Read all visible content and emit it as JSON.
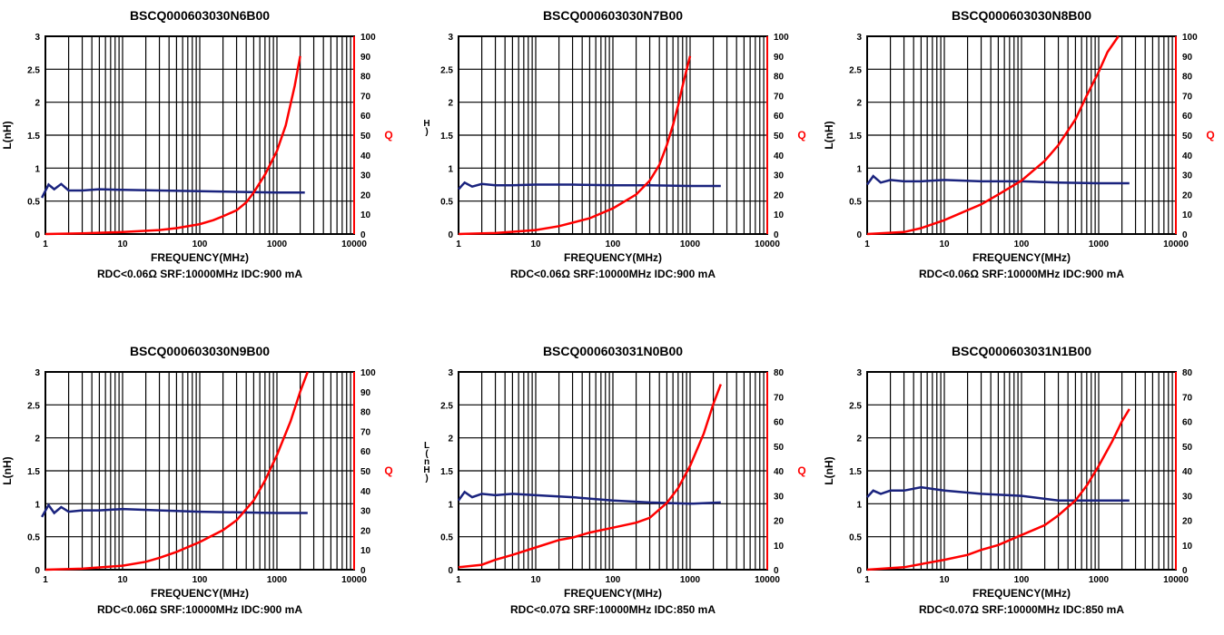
{
  "chart_data": [
    {
      "type": "line",
      "title": "BSCQ000603030N6B00",
      "xlabel": "FREQUENCY(MHz)",
      "ylabel": "L(nH)",
      "y2label": "Q",
      "footer": "RDC<0.06Ω SRF:10000MHz IDC:900 mA",
      "xscale": "log",
      "xlim": [
        1,
        10000
      ],
      "ylim": [
        0,
        3
      ],
      "y2lim": [
        0,
        100
      ],
      "x_ticks": [
        "1",
        "10",
        "100",
        "1000",
        "10000"
      ],
      "y_ticks": [
        "0",
        "0.5",
        "1",
        "1.5",
        "2",
        "2.5",
        "3"
      ],
      "y2_ticks": [
        "0",
        "10",
        "20",
        "30",
        "40",
        "50",
        "60",
        "70",
        "80",
        "90",
        "100"
      ],
      "series": [
        {
          "name": "L(nH)",
          "axis": "left",
          "color": "#1a237e",
          "x": [
            0.9,
            1.1,
            1.3,
            1.6,
            2,
            3,
            5,
            10,
            30,
            100,
            300,
            1000,
            2300
          ],
          "y": [
            0.55,
            0.75,
            0.68,
            0.76,
            0.66,
            0.66,
            0.68,
            0.67,
            0.66,
            0.65,
            0.64,
            0.63,
            0.63
          ]
        },
        {
          "name": "Q",
          "axis": "right",
          "color": "#ff0000",
          "x": [
            1,
            3,
            10,
            30,
            50,
            100,
            150,
            200,
            300,
            400,
            500,
            700,
            1000,
            1300,
            1700,
            2000
          ],
          "y": [
            0,
            0.3,
            1,
            2,
            3,
            5,
            7,
            9,
            12,
            16,
            21,
            30,
            42,
            55,
            75,
            90
          ]
        }
      ]
    },
    {
      "type": "line",
      "title": "BSCQ000603030N7B00",
      "xlabel": "FREQUENCY(MHz)",
      "ylabel": "H\n)",
      "y2label": "Q",
      "footer": "RDC<0.06Ω SRF:10000MHz IDC:900 mA",
      "xscale": "log",
      "xlim": [
        1,
        10000
      ],
      "ylim": [
        0,
        3
      ],
      "y2lim": [
        0,
        100
      ],
      "x_ticks": [
        "1",
        "10",
        "100",
        "1000",
        "10000"
      ],
      "y_ticks": [
        "0",
        "0.5",
        "1",
        "1.5",
        "2",
        "2.5",
        "3"
      ],
      "y2_ticks": [
        "0",
        "10",
        "20",
        "30",
        "40",
        "50",
        "60",
        "70",
        "80",
        "90",
        "100"
      ],
      "series": [
        {
          "name": "L(nH)",
          "axis": "left",
          "color": "#1a237e",
          "x": [
            1,
            1.2,
            1.5,
            2,
            3,
            5,
            10,
            30,
            100,
            300,
            1000,
            2500
          ],
          "y": [
            0.68,
            0.78,
            0.72,
            0.76,
            0.74,
            0.74,
            0.75,
            0.75,
            0.74,
            0.74,
            0.73,
            0.73
          ]
        },
        {
          "name": "Q",
          "axis": "right",
          "color": "#ff0000",
          "x": [
            1,
            3,
            10,
            20,
            50,
            100,
            200,
            300,
            400,
            500,
            600,
            700,
            800,
            900,
            1000
          ],
          "y": [
            0,
            0.5,
            2,
            4,
            8,
            13,
            20,
            27,
            35,
            45,
            55,
            65,
            75,
            83,
            90
          ]
        }
      ]
    },
    {
      "type": "line",
      "title": "BSCQ000603030N8B00",
      "xlabel": "FREQUENCY(MHz)",
      "ylabel": "L(nH)",
      "y2label": "Q",
      "footer": "RDC<0.06Ω SRF:10000MHz IDC:900 mA",
      "xscale": "log",
      "xlim": [
        1,
        10000
      ],
      "ylim": [
        0,
        3
      ],
      "y2lim": [
        0,
        100
      ],
      "x_ticks": [
        "1",
        "10",
        "100",
        "1000",
        "10000"
      ],
      "y_ticks": [
        "0",
        "0.5",
        "1",
        "1.5",
        "2",
        "2.5",
        "3"
      ],
      "y2_ticks": [
        "0",
        "10",
        "20",
        "30",
        "40",
        "50",
        "60",
        "70",
        "80",
        "90",
        "100"
      ],
      "series": [
        {
          "name": "L(nH)",
          "axis": "left",
          "color": "#1a237e",
          "x": [
            1,
            1.2,
            1.5,
            2,
            3,
            5,
            10,
            30,
            100,
            300,
            1000,
            2500
          ],
          "y": [
            0.75,
            0.88,
            0.78,
            0.82,
            0.8,
            0.8,
            0.82,
            0.8,
            0.8,
            0.78,
            0.77,
            0.77
          ]
        },
        {
          "name": "Q",
          "axis": "right",
          "color": "#ff0000",
          "x": [
            1,
            3,
            5,
            10,
            30,
            50,
            100,
            200,
            300,
            500,
            700,
            1000,
            1300,
            1800
          ],
          "y": [
            0,
            1,
            3,
            7,
            15,
            20,
            27,
            37,
            45,
            58,
            70,
            82,
            92,
            100
          ]
        }
      ]
    },
    {
      "type": "line",
      "title": "BSCQ000603030N9B00",
      "xlabel": "FREQUENCY(MHz)",
      "ylabel": "L(nH)",
      "y2label": "Q",
      "footer": "RDC<0.06Ω SRF:10000MHz IDC:900 mA",
      "xscale": "log",
      "xlim": [
        1,
        10000
      ],
      "ylim": [
        0,
        3
      ],
      "y2lim": [
        0,
        100
      ],
      "x_ticks": [
        "1",
        "10",
        "100",
        "1000",
        "10000"
      ],
      "y_ticks": [
        "0",
        "0.5",
        "1",
        "1.5",
        "2",
        "2.5",
        "3"
      ],
      "y2_ticks": [
        "0",
        "10",
        "20",
        "30",
        "40",
        "50",
        "60",
        "70",
        "80",
        "90",
        "100"
      ],
      "series": [
        {
          "name": "L(nH)",
          "axis": "left",
          "color": "#1a237e",
          "x": [
            0.9,
            1.1,
            1.3,
            1.6,
            2,
            3,
            5,
            10,
            30,
            100,
            300,
            1000,
            2500
          ],
          "y": [
            0.8,
            0.98,
            0.86,
            0.95,
            0.88,
            0.9,
            0.9,
            0.92,
            0.9,
            0.88,
            0.87,
            0.86,
            0.86
          ]
        },
        {
          "name": "Q",
          "axis": "right",
          "color": "#ff0000",
          "x": [
            1,
            3,
            10,
            20,
            30,
            50,
            100,
            200,
            300,
            500,
            700,
            1000,
            1500,
            2000,
            2500
          ],
          "y": [
            0,
            0.5,
            2,
            4,
            6,
            9,
            14,
            20,
            25,
            35,
            45,
            58,
            75,
            90,
            100
          ]
        }
      ]
    },
    {
      "type": "line",
      "title": "BSCQ000603031N0B00",
      "xlabel": "FREQUENCY(MHz)",
      "ylabel": "L\n(\nn\nH\n)",
      "y2label": "Q",
      "footer": "RDC<0.07Ω SRF:10000MHz IDC:850 mA",
      "xscale": "log",
      "xlim": [
        1,
        10000
      ],
      "ylim": [
        0,
        3
      ],
      "y2lim": [
        0,
        80
      ],
      "x_ticks": [
        "1",
        "10",
        "100",
        "1000",
        "10000"
      ],
      "y_ticks": [
        "0",
        "0.5",
        "1",
        "1.5",
        "2",
        "2.5",
        "3"
      ],
      "y2_ticks": [
        "0",
        "10",
        "20",
        "30",
        "40",
        "50",
        "60",
        "70",
        "80"
      ],
      "series": [
        {
          "name": "L(nH)",
          "axis": "left",
          "color": "#1a237e",
          "x": [
            1,
            1.2,
            1.5,
            2,
            3,
            5,
            10,
            30,
            100,
            300,
            1000,
            2500
          ],
          "y": [
            1.05,
            1.18,
            1.1,
            1.15,
            1.13,
            1.15,
            1.13,
            1.1,
            1.05,
            1.02,
            1.0,
            1.02
          ]
        },
        {
          "name": "Q",
          "axis": "right",
          "color": "#ff0000",
          "x": [
            1,
            2,
            3,
            5,
            10,
            20,
            30,
            50,
            100,
            200,
            300,
            500,
            700,
            1000,
            1500,
            2000,
            2500
          ],
          "y": [
            1,
            2,
            4,
            6,
            9,
            12,
            13,
            15,
            17,
            19,
            21,
            27,
            33,
            42,
            55,
            67,
            75
          ]
        }
      ]
    },
    {
      "type": "line",
      "title": "BSCQ000603031N1B00",
      "xlabel": "FREQUENCY(MHz)",
      "ylabel": "L(nH)",
      "y2label": "",
      "footer": "RDC<0.07Ω SRF:10000MHz IDC:850 mA",
      "xscale": "log",
      "xlim": [
        1,
        10000
      ],
      "ylim": [
        0,
        3
      ],
      "y2lim": [
        0,
        80
      ],
      "x_ticks": [
        "1",
        "10",
        "100",
        "1000",
        "10000"
      ],
      "y_ticks": [
        "0",
        "0.5",
        "1",
        "1.5",
        "2",
        "2.5",
        "3"
      ],
      "y2_ticks": [
        "0",
        "10",
        "20",
        "30",
        "40",
        "50",
        "60",
        "70",
        "80"
      ],
      "series": [
        {
          "name": "L(nH)",
          "axis": "left",
          "color": "#1a237e",
          "x": [
            1,
            1.2,
            1.5,
            2,
            3,
            5,
            10,
            30,
            100,
            300,
            1000,
            2500
          ],
          "y": [
            1.1,
            1.2,
            1.15,
            1.2,
            1.2,
            1.25,
            1.2,
            1.15,
            1.12,
            1.05,
            1.05,
            1.05
          ]
        },
        {
          "name": "Q",
          "axis": "right",
          "color": "#ff0000",
          "x": [
            1,
            3,
            10,
            20,
            30,
            50,
            100,
            200,
            300,
            500,
            700,
            1000,
            1500,
            2000,
            2500
          ],
          "y": [
            0,
            1,
            4,
            6,
            8,
            10,
            14,
            18,
            22,
            28,
            34,
            42,
            52,
            60,
            65
          ]
        }
      ]
    }
  ]
}
